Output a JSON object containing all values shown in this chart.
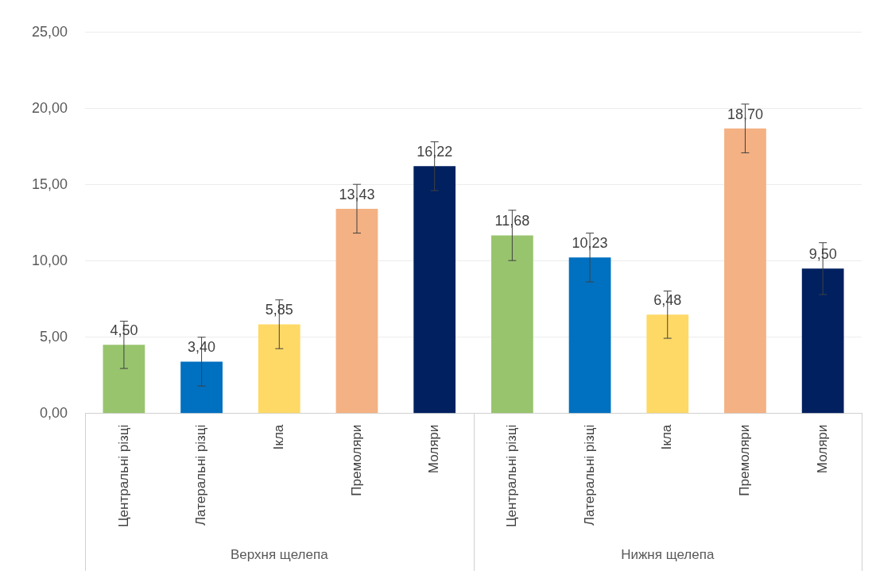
{
  "chart_data": {
    "type": "bar",
    "categories": [
      "Центральні різці",
      "Латеральні різці",
      "Ікла",
      "Премоляри",
      "Моляри",
      "Центральні різці",
      "Латеральні різці",
      "Ікла",
      "Премоляри",
      "Моляри"
    ],
    "values": [
      4.5,
      3.4,
      5.85,
      13.43,
      16.22,
      11.68,
      10.23,
      6.48,
      18.7,
      9.5
    ],
    "colors": [
      "#98c46e",
      "#0070c0",
      "#ffd966",
      "#f4b183",
      "#002060",
      "#98c46e",
      "#0070c0",
      "#ffd966",
      "#f4b183",
      "#002060"
    ],
    "value_labels": [
      "4,50",
      "3,40",
      "5,85",
      "13,43",
      "16,22",
      "11,68",
      "10,23",
      "6,48",
      "18,70",
      "9,50"
    ],
    "errors": [
      1.55,
      1.6,
      1.6,
      1.6,
      1.6,
      1.65,
      1.6,
      1.55,
      1.6,
      1.7
    ],
    "annotations": [
      "Верхня щелепа",
      "Нижня щелепа"
    ],
    "ylim": [
      0,
      25
    ],
    "yticks": [
      {
        "value": 0,
        "label": "0,00"
      },
      {
        "value": 5,
        "label": "5,00"
      },
      {
        "value": 10,
        "label": "10,00"
      },
      {
        "value": 15,
        "label": "15,00"
      },
      {
        "value": 20,
        "label": "20,00"
      },
      {
        "value": 25,
        "label": "25,00"
      }
    ],
    "grid": "y",
    "legend": false
  }
}
